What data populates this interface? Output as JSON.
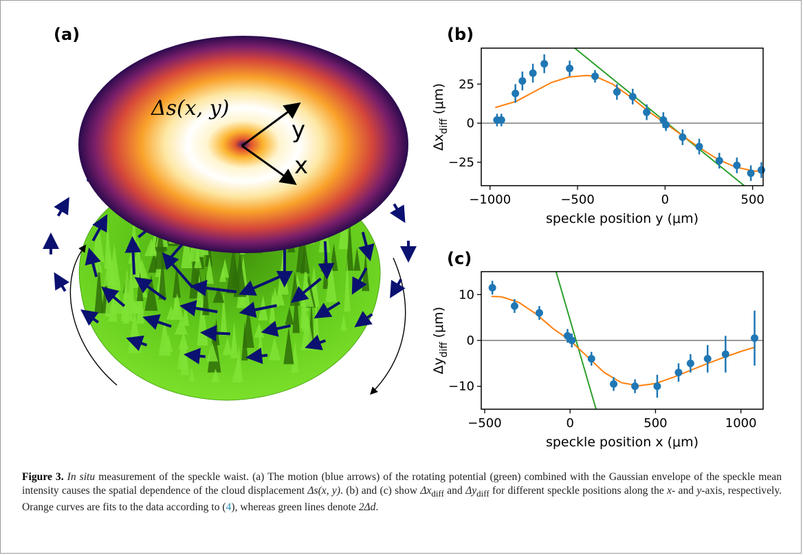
{
  "panels": {
    "a": "(a)",
    "b": "(b)",
    "c": "(c)"
  },
  "illustration": {
    "disc_label": "Δs(x, y)",
    "axis_y": "y",
    "axis_x": "x",
    "colors": {
      "speckle": "#5ecf17",
      "arrows": "#0b1170"
    }
  },
  "chart_data": [
    {
      "type": "scatter",
      "panel": "(b)",
      "xlabel": "speckle position y (μm)",
      "ylabel": "Δx",
      "ylabel_sub": "diff",
      "ylabel_unit": " (μm)",
      "xlim": [
        -1050,
        560
      ],
      "ylim": [
        -40,
        48
      ],
      "xticks": [
        -1000,
        -500,
        0,
        500
      ],
      "xtick_labels": [
        "−1000",
        "−500",
        "0",
        "500"
      ],
      "yticks": [
        -25,
        0,
        25
      ],
      "ytick_labels": [
        "−25",
        "0",
        "25"
      ],
      "colors": {
        "data": "#1f77b4",
        "fit": "#ff7f0e",
        "line": "#2ca02c",
        "zero": "#999999"
      },
      "data": [
        {
          "x": -960,
          "y": 2,
          "err": 4
        },
        {
          "x": -935,
          "y": 2,
          "err": 4
        },
        {
          "x": -855,
          "y": 19,
          "err": 6
        },
        {
          "x": -815,
          "y": 27,
          "err": 6
        },
        {
          "x": -755,
          "y": 32,
          "err": 6
        },
        {
          "x": -690,
          "y": 38,
          "err": 6
        },
        {
          "x": -545,
          "y": 35,
          "err": 5
        },
        {
          "x": -400,
          "y": 30,
          "err": 4
        },
        {
          "x": -275,
          "y": 20,
          "err": 5
        },
        {
          "x": -185,
          "y": 17,
          "err": 5
        },
        {
          "x": -105,
          "y": 7,
          "err": 5
        },
        {
          "x": -10,
          "y": 2,
          "err": 5
        },
        {
          "x": 5,
          "y": -1,
          "err": 4
        },
        {
          "x": 100,
          "y": -9,
          "err": 5
        },
        {
          "x": 195,
          "y": -15,
          "err": 5
        },
        {
          "x": 310,
          "y": -24,
          "err": 5
        },
        {
          "x": 410,
          "y": -27,
          "err": 5
        },
        {
          "x": 490,
          "y": -32,
          "err": 5
        },
        {
          "x": 550,
          "y": -30,
          "err": 5
        }
      ],
      "fit": [
        [
          -970,
          10
        ],
        [
          -850,
          14
        ],
        [
          -750,
          20
        ],
        [
          -650,
          26
        ],
        [
          -550,
          29.5
        ],
        [
          -450,
          30.5
        ],
        [
          -400,
          30
        ],
        [
          -300,
          25
        ],
        [
          -200,
          17
        ],
        [
          -100,
          8
        ],
        [
          0,
          0
        ],
        [
          100,
          -8
        ],
        [
          200,
          -16
        ],
        [
          300,
          -23
        ],
        [
          400,
          -28
        ],
        [
          500,
          -30.5
        ],
        [
          560,
          -31
        ]
      ],
      "line": [
        [
          -560,
          52
        ],
        [
          540,
          -48
        ]
      ]
    },
    {
      "type": "scatter",
      "panel": "(c)",
      "xlabel": "speckle position x (μm)",
      "ylabel": "Δy",
      "ylabel_sub": "diff",
      "ylabel_unit": " (μm)",
      "xlim": [
        -520,
        1130
      ],
      "ylim": [
        -15,
        15
      ],
      "xticks": [
        -500,
        0,
        500,
        1000
      ],
      "xtick_labels": [
        "−500",
        "0",
        "500",
        "1000"
      ],
      "yticks": [
        -10,
        0,
        10
      ],
      "ytick_labels": [
        "−10",
        "0",
        "10"
      ],
      "colors": {
        "data": "#1f77b4",
        "fit": "#ff7f0e",
        "line": "#2ca02c",
        "zero": "#999999"
      },
      "data": [
        {
          "x": -455,
          "y": 11.5,
          "err": 1.5
        },
        {
          "x": -325,
          "y": 7.5,
          "err": 1.5
        },
        {
          "x": -180,
          "y": 6,
          "err": 1.5
        },
        {
          "x": -15,
          "y": 1,
          "err": 1.5
        },
        {
          "x": 10,
          "y": 0,
          "err": 1.5
        },
        {
          "x": 125,
          "y": -4,
          "err": 1.5
        },
        {
          "x": 255,
          "y": -9.5,
          "err": 1.5
        },
        {
          "x": 380,
          "y": -10,
          "err": 1.5
        },
        {
          "x": 510,
          "y": -10,
          "err": 2.5
        },
        {
          "x": 635,
          "y": -7,
          "err": 2
        },
        {
          "x": 705,
          "y": -5,
          "err": 2
        },
        {
          "x": 805,
          "y": -4,
          "err": 3
        },
        {
          "x": 910,
          "y": -3,
          "err": 4
        },
        {
          "x": 1080,
          "y": 0.5,
          "err": 6
        }
      ],
      "fit": [
        [
          -460,
          9.6
        ],
        [
          -400,
          9.5
        ],
        [
          -300,
          8.3
        ],
        [
          -200,
          5.8
        ],
        [
          -100,
          2.6
        ],
        [
          0,
          0
        ],
        [
          100,
          -3.5
        ],
        [
          200,
          -7
        ],
        [
          300,
          -9.2
        ],
        [
          400,
          -9.9
        ],
        [
          500,
          -9.4
        ],
        [
          600,
          -8.1
        ],
        [
          700,
          -6.6
        ],
        [
          800,
          -5.1
        ],
        [
          900,
          -3.7
        ],
        [
          1000,
          -2.4
        ],
        [
          1080,
          -1.5
        ]
      ],
      "line": [
        [
          -90,
          16
        ],
        [
          160,
          -16
        ]
      ]
    }
  ],
  "caption": {
    "label": "Figure 3.",
    "italic_lead": "In situ",
    "part1": " measurement of the speckle waist. (a) The motion (blue arrows) of the rotating potential (green) combined with the Gaussian envelope of the speckle mean intensity causes the spatial dependence of the cloud displacement ",
    "sym_ds": "Δs(x, y)",
    "part2": ". (b) and (c) show ",
    "sym_dx": "Δx",
    "sub_dx": "diff",
    "part3": " and ",
    "sym_dy": "Δy",
    "sub_dy": "diff",
    "part4": " for different speckle positions along the ",
    "x_axis": "x",
    "part5": "- and ",
    "y_axis": "y",
    "part6": "-axis, respectively. Orange curves are fits to the data according to (",
    "ref": "4",
    "part7": "), whereas green lines denote ",
    "sym_d": "2Δd",
    "part8": "."
  }
}
